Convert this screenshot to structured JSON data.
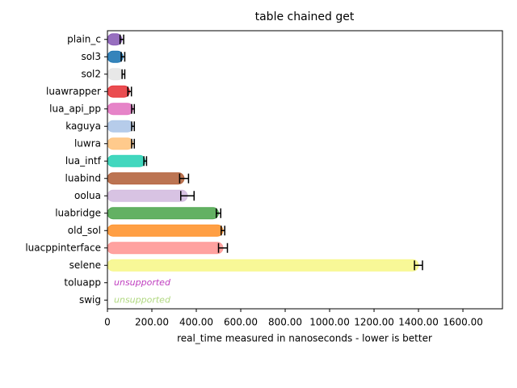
{
  "chart_data": {
    "type": "bar",
    "orientation": "horizontal",
    "title": "table chained get",
    "xlabel": "real_time measured in nanoseconds - lower is better",
    "categories": [
      "plain_c",
      "sol3",
      "sol2",
      "luawrapper",
      "lua_api_pp",
      "kaguya",
      "luwra",
      "lua_intf",
      "luabind",
      "oolua",
      "luabridge",
      "old_sol",
      "luacppinterface",
      "selene",
      "toluapp",
      "swig"
    ],
    "values": [
      65,
      70,
      72,
      100,
      115,
      115,
      115,
      170,
      345,
      360,
      500,
      520,
      520,
      1400,
      null,
      null
    ],
    "errors": [
      8,
      8,
      6,
      8,
      6,
      6,
      6,
      6,
      20,
      30,
      10,
      8,
      20,
      18,
      null,
      null
    ],
    "value_labels": [
      null,
      null,
      null,
      null,
      null,
      null,
      null,
      null,
      null,
      null,
      null,
      null,
      null,
      null,
      "unsupported",
      "unsupported"
    ],
    "colors": [
      "#8c5fb8",
      "#1f77b4",
      "#e6e6e6",
      "#e8383d",
      "#e377c2",
      "#aec7e8",
      "#ffc480",
      "#2ed3b7",
      "#b5653f",
      "#d4bde0",
      "#52a852",
      "#ff9530",
      "#ff9896",
      "#f7f78c",
      "#c03fc0",
      "#b0d880"
    ],
    "xlim": [
      0,
      1778
    ],
    "xticks": [
      0,
      {
        "value": 200,
        "label": "200.00"
      },
      {
        "value": 400,
        "label": "400.00"
      },
      {
        "value": 600,
        "label": "600.00"
      },
      {
        "value": 800,
        "label": "800.00"
      },
      {
        "value": 1000,
        "label": "1000.00"
      },
      {
        "value": 1200,
        "label": "1200.00"
      },
      {
        "value": 1400,
        "label": "1400.00"
      },
      {
        "value": 1600,
        "label": "1600.00"
      }
    ]
  }
}
